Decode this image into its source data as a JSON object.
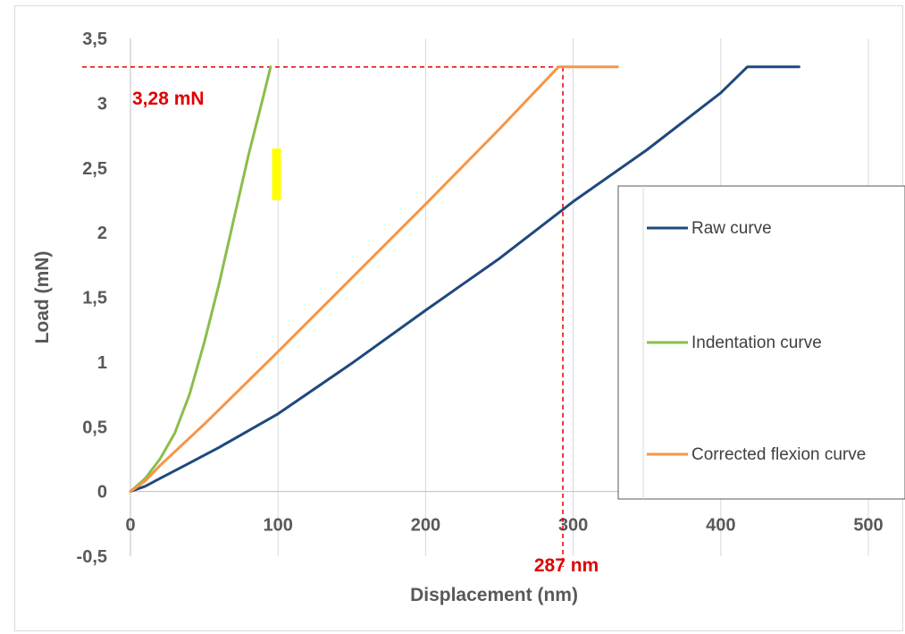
{
  "chart_data": {
    "type": "line",
    "xlabel": "Displacement (nm)",
    "ylabel": "Load (mN)",
    "xlim": [
      0,
      500
    ],
    "ylim": [
      -0.5,
      3.5
    ],
    "x_ticks": [
      "0",
      "100",
      "200",
      "300",
      "400",
      "500"
    ],
    "y_ticks": [
      "-0,5",
      "0",
      "0,5",
      "1",
      "1,5",
      "2",
      "2,5",
      "3",
      "3,5"
    ],
    "grid": "vertical",
    "legend_position": "right",
    "series": [
      {
        "name": "Raw curve",
        "color": "#1f497d",
        "x": [
          0,
          10,
          20,
          40,
          60,
          100,
          150,
          200,
          250,
          300,
          350,
          400,
          418,
          453
        ],
        "y": [
          0,
          0.04,
          0.1,
          0.22,
          0.34,
          0.6,
          0.99,
          1.4,
          1.8,
          2.24,
          2.64,
          3.08,
          3.28,
          3.28
        ]
      },
      {
        "name": "Indentation curve",
        "color": "#8cbd4a",
        "x": [
          0,
          10,
          20,
          30,
          40,
          50,
          60,
          70,
          80,
          90,
          95
        ],
        "y": [
          0,
          0.1,
          0.25,
          0.45,
          0.75,
          1.15,
          1.6,
          2.1,
          2.6,
          3.05,
          3.28
        ]
      },
      {
        "name": "Corrected flexion curve",
        "color": "#f79646",
        "x": [
          0,
          10,
          20,
          50,
          100,
          150,
          200,
          250,
          290,
          330
        ],
        "y": [
          0,
          0.08,
          0.2,
          0.52,
          1.08,
          1.65,
          2.22,
          2.8,
          3.28,
          3.28
        ]
      }
    ],
    "annotations": [
      {
        "text": "3,28 mN",
        "kind": "horizontal-reference",
        "y": 3.28,
        "x_end": 290,
        "color": "#e00000"
      },
      {
        "text": "287 nm",
        "kind": "vertical-reference",
        "x": 293,
        "y_end": 3.28,
        "color": "#e00000"
      }
    ],
    "highlight": {
      "color": "#ffff00",
      "x": 99,
      "y_range": [
        2.25,
        2.65
      ]
    }
  }
}
